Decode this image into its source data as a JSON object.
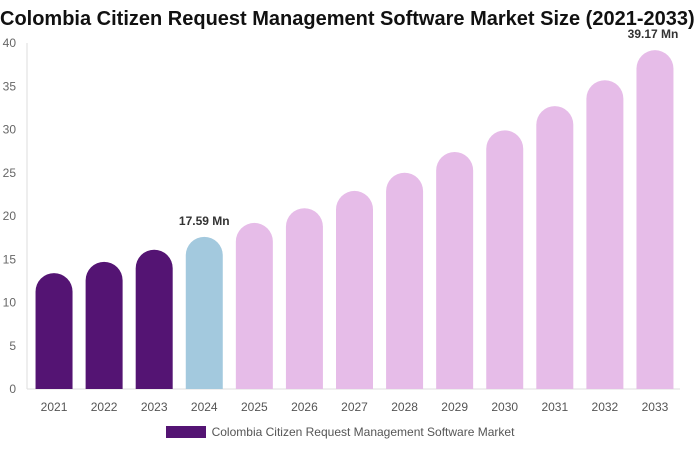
{
  "chart_data": {
    "type": "bar",
    "title": "Colombia Citizen Request Management Software Market Size (2021-2033)",
    "categories": [
      "2021",
      "2022",
      "2023",
      "2024",
      "2025",
      "2026",
      "2027",
      "2028",
      "2029",
      "2030",
      "2031",
      "2032",
      "2033"
    ],
    "values": [
      13.4,
      14.7,
      16.1,
      17.59,
      19.2,
      20.9,
      22.9,
      25.0,
      27.4,
      29.9,
      32.7,
      35.7,
      39.17
    ],
    "colors": [
      "#541473",
      "#541473",
      "#541473",
      "#a3c9de",
      "#e6bce8",
      "#e6bce8",
      "#e6bce8",
      "#e6bce8",
      "#e6bce8",
      "#e6bce8",
      "#e6bce8",
      "#e6bce8",
      "#e6bce8"
    ],
    "data_labels": {
      "3": "17.59 Mn",
      "12": "39.17 Mn"
    },
    "ylim": [
      0,
      40
    ],
    "yticks": [
      0,
      5,
      10,
      15,
      20,
      25,
      30,
      35,
      40
    ],
    "grid": false,
    "legend": {
      "position": "bottom",
      "label": "Colombia Citizen Request Management Software Market",
      "color": "#541473"
    }
  }
}
